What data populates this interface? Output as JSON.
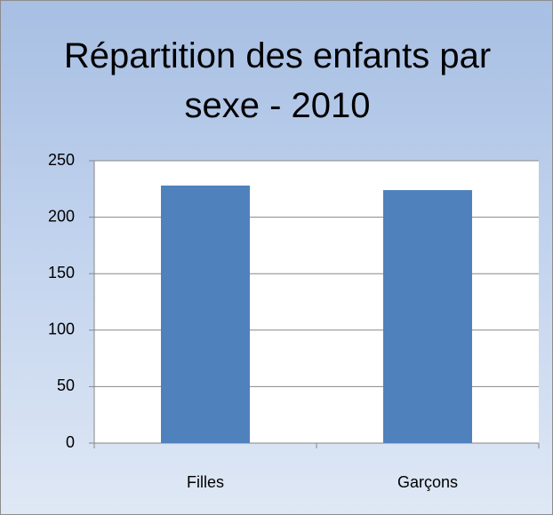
{
  "chart_data": {
    "type": "bar",
    "title": "Répartition des enfants par sexe - 2010",
    "categories": [
      "Filles",
      "Garçons"
    ],
    "values": [
      228,
      224
    ],
    "color": "#4f81bd",
    "ylim": [
      0,
      250
    ],
    "yticks": [
      0,
      50,
      100,
      150,
      200,
      250
    ],
    "grid": true
  }
}
